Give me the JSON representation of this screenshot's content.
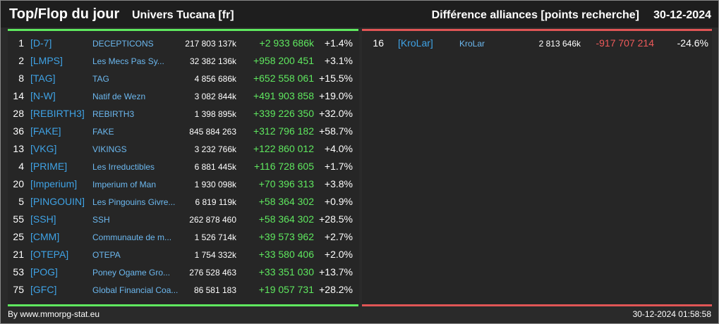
{
  "header": {
    "title": "Top/Flop du jour",
    "universe": "Univers Tucana [fr]",
    "subject": "Différence alliances [points recherche]",
    "date": "30-12-2024"
  },
  "top": {
    "rows": [
      {
        "rank": "1",
        "tag": "[D-7]",
        "name": "DECEPTICONS",
        "points": "217 803 137k",
        "diff": "+2 933 686k",
        "change": "+1.4%"
      },
      {
        "rank": "2",
        "tag": "[LMPS]",
        "name": "Les Mecs Pas Sy...",
        "points": "32 382 136k",
        "diff": "+958 200 451",
        "change": "+3.1%"
      },
      {
        "rank": "8",
        "tag": "[TAG]",
        "name": "TAG",
        "points": "4 856 686k",
        "diff": "+652 558 061",
        "change": "+15.5%"
      },
      {
        "rank": "14",
        "tag": "[N-W]",
        "name": "Natif de Wezn",
        "points": "3 082 844k",
        "diff": "+491 903 858",
        "change": "+19.0%"
      },
      {
        "rank": "28",
        "tag": "[REBIRTH3]",
        "name": "REBIRTH3",
        "points": "1 398 895k",
        "diff": "+339 226 350",
        "change": "+32.0%"
      },
      {
        "rank": "36",
        "tag": "[FAKE]",
        "name": "FAKE",
        "points": "845 884 263",
        "diff": "+312 796 182",
        "change": "+58.7%"
      },
      {
        "rank": "13",
        "tag": "[VKG]",
        "name": "VIKINGS",
        "points": "3 232 766k",
        "diff": "+122 860 012",
        "change": "+4.0%"
      },
      {
        "rank": "4",
        "tag": "[PRIME]",
        "name": "Les Irreductibles",
        "points": "6 881 445k",
        "diff": "+116 728 605",
        "change": "+1.7%"
      },
      {
        "rank": "20",
        "tag": "[Imperium]",
        "name": "Imperium of Man",
        "points": "1 930 098k",
        "diff": "+70 396 313",
        "change": "+3.8%"
      },
      {
        "rank": "5",
        "tag": "[PINGOUIN]",
        "name": "Les Pingouins Givre...",
        "points": "6 819 119k",
        "diff": "+58 364 302",
        "change": "+0.9%"
      },
      {
        "rank": "55",
        "tag": "[SSH]",
        "name": "SSH",
        "points": "262 878 460",
        "diff": "+58 364 302",
        "change": "+28.5%"
      },
      {
        "rank": "25",
        "tag": "[CMM]",
        "name": "Communaute de m...",
        "points": "1 526 714k",
        "diff": "+39 573 962",
        "change": "+2.7%"
      },
      {
        "rank": "21",
        "tag": "[OTEPA]",
        "name": "OTEPA",
        "points": "1 754 332k",
        "diff": "+33 580 406",
        "change": "+2.0%"
      },
      {
        "rank": "53",
        "tag": "[POG]",
        "name": "Poney Ogame Gro...",
        "points": "276 528 463",
        "diff": "+33 351 030",
        "change": "+13.7%"
      },
      {
        "rank": "75",
        "tag": "[GFC]",
        "name": "Global Financial Coa...",
        "points": "86 581 183",
        "diff": "+19 057 731",
        "change": "+28.2%"
      }
    ]
  },
  "flop": {
    "rows": [
      {
        "rank": "16",
        "tag": "[KroLar]",
        "name": "KroLar",
        "points": "2 813 646k",
        "diff": "-917 707 214",
        "change": "-24.6%"
      }
    ]
  },
  "footer": {
    "source": "By www.mmorpg-stat.eu",
    "timestamp": "30-12-2024 01:58:58"
  }
}
